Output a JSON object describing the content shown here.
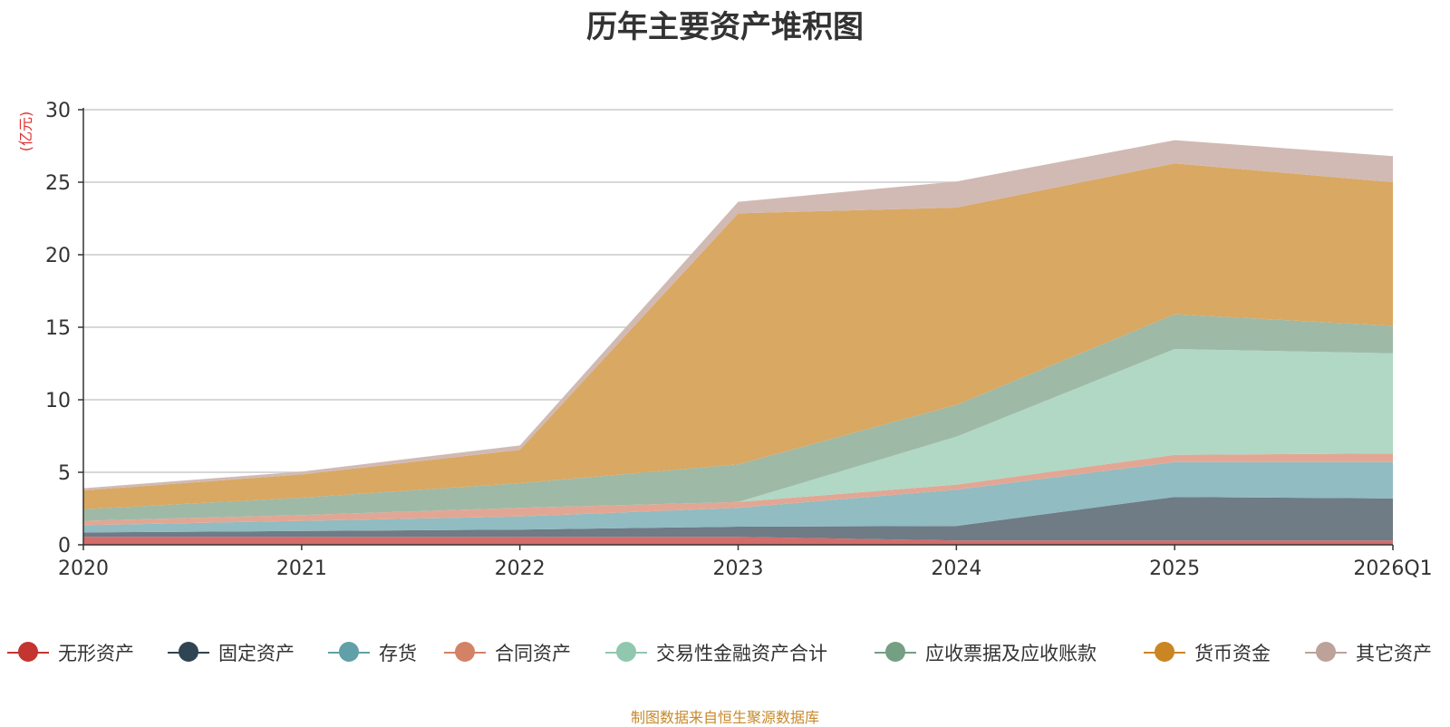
{
  "chart_data": {
    "type": "area",
    "stacked": true,
    "title": "历年主要资产堆积图",
    "ylabel": "(亿元)",
    "xlabel": "",
    "categories": [
      "2020",
      "2021",
      "2022",
      "2023",
      "2024",
      "2025",
      "2026Q1"
    ],
    "ylim": [
      0,
      30
    ],
    "yticks": [
      0,
      5,
      10,
      15,
      20,
      25,
      30
    ],
    "grid": true,
    "legend_position": "bottom",
    "series": [
      {
        "name": "无形资产",
        "color": "#c23531",
        "area_color": "#d36c6a",
        "values": [
          0.55,
          0.55,
          0.55,
          0.55,
          0.3,
          0.3,
          0.3
        ]
      },
      {
        "name": "固定资产",
        "color": "#2f4554",
        "area_color": "#6f7b85",
        "values": [
          0.3,
          0.4,
          0.5,
          0.7,
          1.0,
          3.0,
          2.9
        ]
      },
      {
        "name": "存货",
        "color": "#61a0a8",
        "area_color": "#90bcc2",
        "values": [
          0.5,
          0.7,
          0.9,
          1.3,
          2.5,
          2.4,
          2.5
        ]
      },
      {
        "name": "合同资产",
        "color": "#d48265",
        "area_color": "#e2a794",
        "values": [
          0.3,
          0.4,
          0.6,
          0.4,
          0.35,
          0.5,
          0.6
        ]
      },
      {
        "name": "交易性金融资产合计",
        "color": "#91c7ae",
        "area_color": "#b0d8c5",
        "values": [
          0,
          0,
          0,
          0,
          3.3,
          7.3,
          6.9
        ]
      },
      {
        "name": "应收票据及应收账款",
        "color": "#749f83",
        "area_color": "#9fb9a7",
        "values": [
          0.8,
          1.2,
          1.7,
          2.6,
          2.2,
          2.4,
          1.9
        ]
      },
      {
        "name": "货币资金",
        "color": "#ca8622",
        "area_color": "#d9a862",
        "values": [
          1.3,
          1.6,
          2.3,
          17.3,
          13.6,
          10.4,
          9.9
        ]
      },
      {
        "name": "其它资产",
        "color": "#bda29a",
        "area_color": "#d1bab4",
        "values": [
          0.15,
          0.2,
          0.3,
          0.8,
          1.8,
          1.6,
          1.8
        ]
      }
    ]
  },
  "footer": {
    "source": "制图数据来自恒生聚源数据库"
  }
}
